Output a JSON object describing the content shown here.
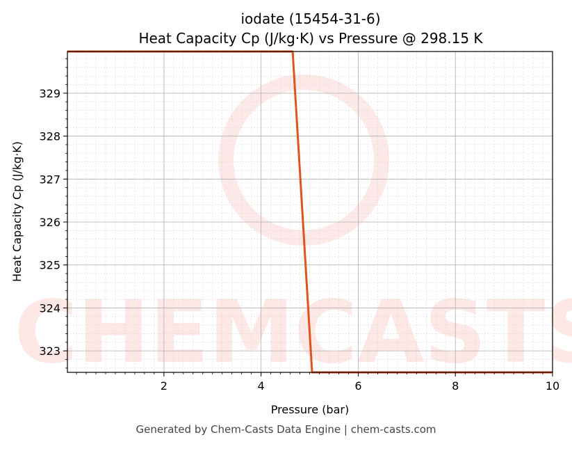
{
  "chart_data": {
    "type": "line",
    "title_line1": "iodate (15454-31-6)",
    "title_line2": "Heat Capacity Cp (J/kg·K) vs Pressure @ 298.15 K",
    "xlabel": "Pressure (bar)",
    "ylabel": "Heat Capacity Cp (J/kg·K)",
    "xlim": [
      0.01325,
      10
    ],
    "ylim": [
      322.5,
      329.97
    ],
    "xticks": [
      2,
      4,
      6,
      8,
      10
    ],
    "yticks": [
      323,
      324,
      325,
      326,
      327,
      328,
      329
    ],
    "grid": true,
    "series": [
      {
        "color": "#e0531f",
        "x": [
          0.01325,
          4.65,
          5.05,
          10
        ],
        "y": [
          329.97,
          329.97,
          322.5,
          322.5
        ]
      }
    ]
  },
  "watermark": "CHEMCASTS",
  "footer": "Generated by Chem-Casts Data Engine | chem-casts.com"
}
